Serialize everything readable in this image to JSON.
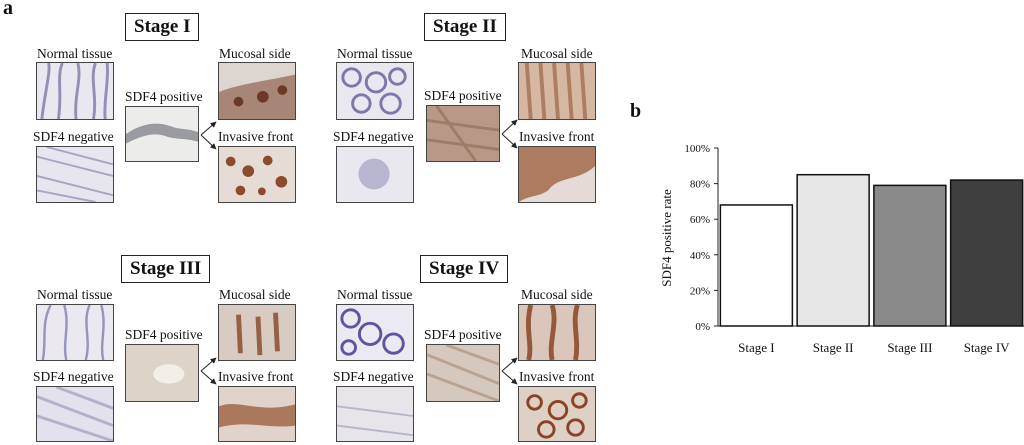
{
  "panel_a": {
    "letter": "a",
    "stages": [
      {
        "title": "Stage I",
        "normal": "Normal tissue",
        "negative": "SDF4 negative",
        "positive": "SDF4 positive",
        "mucosal": "Mucosal side",
        "invasive": "Invasive front"
      },
      {
        "title": "Stage II",
        "normal": "Normal tissue",
        "negative": "SDF4 negative",
        "positive": "SDF4 positive",
        "mucosal": "Mucosal side",
        "invasive": "Invasive front"
      },
      {
        "title": "Stage III",
        "normal": "Normal tissue",
        "negative": "SDF4 negative",
        "positive": "SDF4 positive",
        "mucosal": "Mucosal side",
        "invasive": "Invasive front"
      },
      {
        "title": "Stage IV",
        "normal": "Normal tissue",
        "negative": "SDF4 negative",
        "positive": "SDF4 positive",
        "mucosal": "Mucosal side",
        "invasive": "Invasive front"
      }
    ]
  },
  "panel_b": {
    "letter": "b"
  },
  "chart_data": {
    "type": "bar",
    "categories": [
      "Stage I",
      "Stage II",
      "Stage III",
      "Stage IV"
    ],
    "values": [
      68,
      85,
      79,
      82
    ],
    "ylabel": "SDF4 positive rate",
    "ylim": [
      0,
      100
    ],
    "yticks": [
      "0%",
      "20%",
      "40%",
      "60%",
      "80%",
      "100%"
    ],
    "bar_colors": [
      "#ffffff",
      "#e6e6e6",
      "#8a8a8a",
      "#3f3f3f"
    ],
    "grid": false
  }
}
